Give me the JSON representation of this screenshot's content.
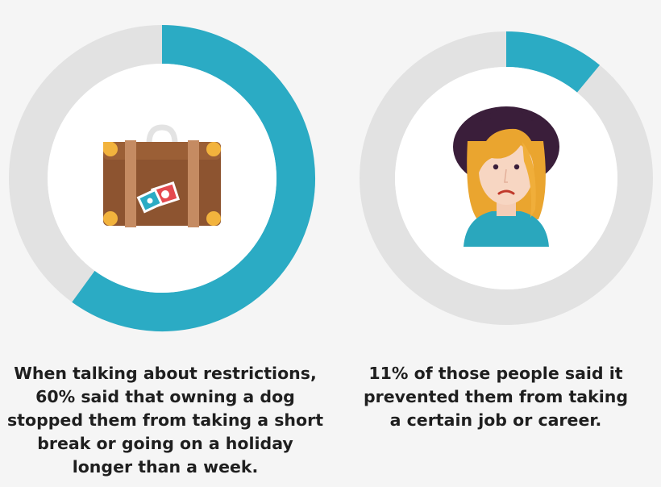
{
  "stats": [
    {
      "percent": 60,
      "caption_lines": [
        "When talking about restrictions,",
        "60% said that owning a dog",
        "stopped them from taking a short",
        "break or going on a holiday",
        "longer than a week."
      ],
      "icon": "suitcase-icon"
    },
    {
      "percent": 11,
      "caption_lines": [
        "11% of those people said it",
        "prevented them from taking",
        "a certain job or career."
      ],
      "icon": "sad-person-icon"
    }
  ],
  "colors": {
    "background": "#f5f5f5",
    "ring_track": "#e2e2e2",
    "ring_fill": "#2babc4",
    "inner_circle": "#ffffff",
    "text": "#1f1f1f"
  }
}
